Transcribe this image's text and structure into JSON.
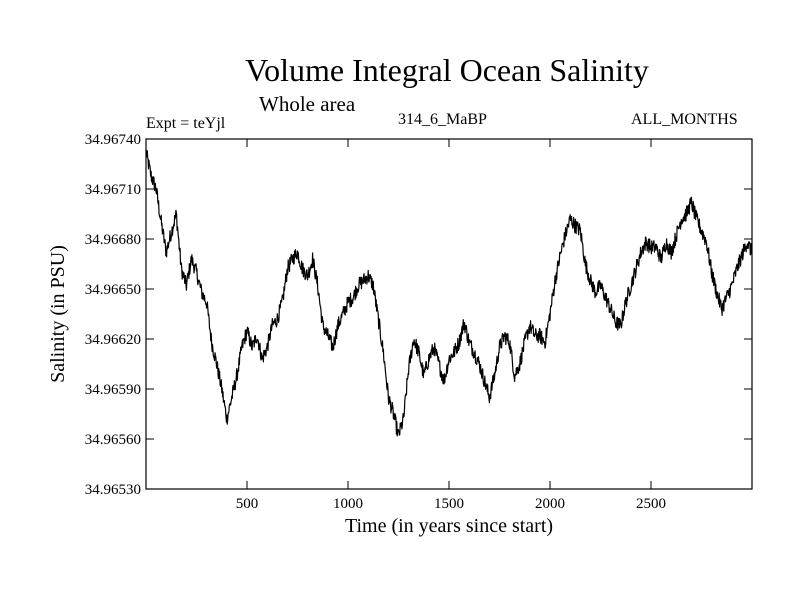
{
  "header": {
    "title": "Volume Integral Ocean Salinity",
    "subtitle": "Whole area",
    "left_label": "Expt = teYjl",
    "center_label": "314_6_MaBP",
    "right_label": "ALL_MONTHS"
  },
  "chart_data": {
    "type": "line",
    "title": "Volume Integral Ocean Salinity",
    "subtitle": "Whole area",
    "xlabel": "Time (in years since start)",
    "ylabel": "Salinity (in PSU)",
    "xlim": [
      0,
      3000
    ],
    "ylim": [
      34.9653,
      34.9674
    ],
    "xticks": [
      500,
      1000,
      1500,
      2000,
      2500
    ],
    "xtick_labels": [
      "500",
      "1000",
      "1500",
      "2000",
      "2500"
    ],
    "yticks": [
      34.9653,
      34.9656,
      34.9659,
      34.9662,
      34.9665,
      34.9668,
      34.9671,
      34.9674
    ],
    "ytick_labels": [
      "34.96530",
      "34.96560",
      "34.96590",
      "34.96620",
      "34.96650",
      "34.96680",
      "34.96710",
      "34.96740"
    ],
    "grid": false,
    "series": [
      {
        "name": "salinity",
        "color": "#000000",
        "x": [
          0,
          25,
          50,
          75,
          100,
          125,
          150,
          175,
          200,
          225,
          250,
          275,
          300,
          325,
          350,
          375,
          400,
          425,
          450,
          475,
          500,
          525,
          550,
          575,
          600,
          625,
          650,
          675,
          700,
          725,
          750,
          775,
          800,
          825,
          850,
          875,
          900,
          925,
          950,
          975,
          1000,
          1025,
          1050,
          1075,
          1100,
          1125,
          1150,
          1175,
          1200,
          1225,
          1250,
          1275,
          1300,
          1325,
          1350,
          1375,
          1400,
          1425,
          1450,
          1475,
          1500,
          1525,
          1550,
          1575,
          1600,
          1625,
          1650,
          1675,
          1700,
          1725,
          1750,
          1775,
          1800,
          1825,
          1850,
          1875,
          1900,
          1925,
          1950,
          1975,
          2000,
          2025,
          2050,
          2075,
          2100,
          2125,
          2150,
          2175,
          2200,
          2225,
          2250,
          2275,
          2300,
          2325,
          2350,
          2375,
          2400,
          2425,
          2450,
          2475,
          2500,
          2525,
          2550,
          2575,
          2600,
          2625,
          2650,
          2675,
          2700,
          2725,
          2750,
          2775,
          2800,
          2825,
          2850,
          2875,
          2900,
          2925,
          2950,
          2975,
          3000
        ],
        "values": [
          34.96732,
          34.96718,
          34.9671,
          34.9669,
          34.96672,
          34.96684,
          34.96695,
          34.96662,
          34.96652,
          34.96668,
          34.9666,
          34.96648,
          34.96642,
          34.96618,
          34.96605,
          34.9659,
          34.96572,
          34.96585,
          34.96598,
          34.96615,
          34.96625,
          34.96615,
          34.96622,
          34.96608,
          34.96615,
          34.96628,
          34.96632,
          34.96642,
          34.96662,
          34.96668,
          34.96672,
          34.96662,
          34.96658,
          34.96668,
          34.96652,
          34.96628,
          34.96622,
          34.96615,
          34.96628,
          34.96635,
          34.96642,
          34.96645,
          34.96652,
          34.96655,
          34.96658,
          34.96652,
          34.96632,
          34.96612,
          34.96585,
          34.96575,
          34.96562,
          34.96572,
          34.96602,
          34.9662,
          34.96612,
          34.96598,
          34.96608,
          34.96615,
          34.96605,
          34.96595,
          34.96608,
          34.96612,
          34.96618,
          34.9663,
          34.96618,
          34.96612,
          34.96605,
          34.96595,
          34.96585,
          34.96598,
          34.96615,
          34.96622,
          34.96618,
          34.96598,
          34.96605,
          34.96618,
          34.96628,
          34.96622,
          34.96622,
          34.96618,
          34.96635,
          34.96655,
          34.9667,
          34.96682,
          34.96692,
          34.96688,
          34.96685,
          34.96665,
          34.96655,
          34.96648,
          34.96652,
          34.96645,
          34.96638,
          34.9663,
          34.96628,
          34.96642,
          34.96652,
          34.96662,
          34.96672,
          34.96678,
          34.96675,
          34.96675,
          34.96668,
          34.96678,
          34.96672,
          34.96682,
          34.96692,
          34.96695,
          34.96702,
          34.96692,
          34.96685,
          34.96678,
          34.9666,
          34.96648,
          34.96638,
          34.96645,
          34.96652,
          34.96662,
          34.9667,
          34.96678,
          34.96672
        ]
      }
    ]
  }
}
